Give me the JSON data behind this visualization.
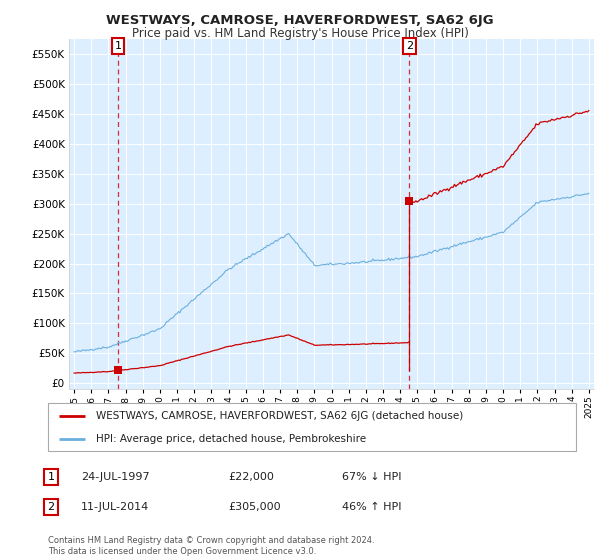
{
  "title": "WESTWAYS, CAMROSE, HAVERFORDWEST, SA62 6JG",
  "subtitle": "Price paid vs. HM Land Registry's House Price Index (HPI)",
  "sale1_date": "24-JUL-1997",
  "sale1_price": 22000,
  "sale1_label": "67% ↓ HPI",
  "sale2_date": "11-JUL-2014",
  "sale2_price": 305000,
  "sale2_label": "46% ↑ HPI",
  "sale1_year": 1997.55,
  "sale2_year": 2014.53,
  "legend_line1": "WESTWAYS, CAMROSE, HAVERFORDWEST, SA62 6JG (detached house)",
  "legend_line2": "HPI: Average price, detached house, Pembrokeshire",
  "footer": "Contains HM Land Registry data © Crown copyright and database right 2024.\nThis data is licensed under the Open Government Licence v3.0.",
  "hpi_color": "#6ab0de",
  "sale_color": "#cc0000",
  "plot_bg_color": "#ddeeff",
  "background_color": "#ffffff",
  "grid_color": "#ffffff",
  "ylim_max": 575000,
  "ylim_min": -10000,
  "xlim_min": 1994.7,
  "xlim_max": 2025.3
}
